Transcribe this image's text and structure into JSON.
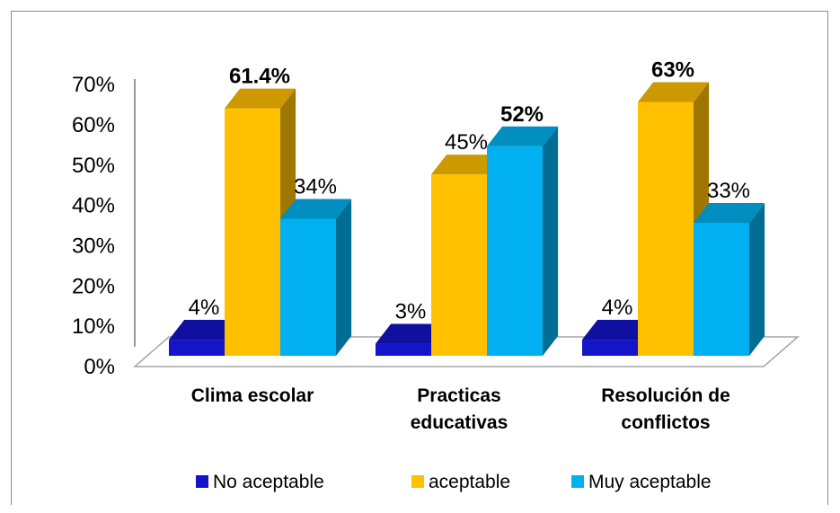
{
  "chart_data": {
    "type": "bar",
    "title": "",
    "xlabel": "",
    "ylabel": "",
    "categories": [
      [
        "Clima escolar"
      ],
      [
        "Practicas",
        "educativas"
      ],
      [
        "Resolución de",
        "conflictos"
      ]
    ],
    "ylim": [
      0,
      70
    ],
    "yticks": [
      "0%",
      "10%",
      "20%",
      "30%",
      "40%",
      "50%",
      "60%",
      "70%"
    ],
    "series": [
      {
        "name": "No aceptable",
        "color": "#1414c8",
        "values": [
          4,
          3,
          4
        ],
        "labels": [
          "4%",
          "3%",
          "4%"
        ],
        "bold": [
          false,
          false,
          false
        ]
      },
      {
        "name": "aceptable",
        "color": "#ffc000",
        "values": [
          61.4,
          45,
          63
        ],
        "labels": [
          "61.4%",
          "45%",
          "63%"
        ],
        "bold": [
          true,
          false,
          true
        ]
      },
      {
        "name": "Muy aceptable",
        "color": "#00b0f0",
        "values": [
          34,
          52,
          33
        ],
        "labels": [
          "34%",
          "52%",
          "33%"
        ],
        "bold": [
          false,
          true,
          false
        ]
      }
    ],
    "legend": "bottom",
    "grid": false,
    "style": "3d-clustered-column"
  }
}
